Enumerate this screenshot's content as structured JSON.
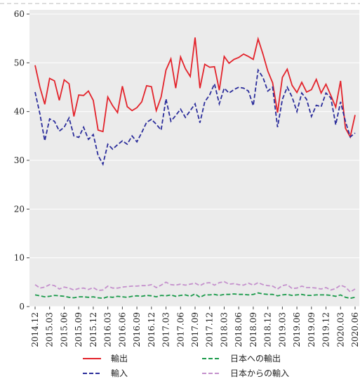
{
  "chart_data": {
    "type": "line",
    "categories": [
      "2014.12",
      null,
      null,
      "2015.03",
      null,
      null,
      "2015.06",
      null,
      null,
      "2015.09",
      null,
      null,
      "2015.12",
      null,
      null,
      "2016.03",
      null,
      null,
      "2016.06",
      null,
      null,
      "2016.09",
      null,
      null,
      "2016.12",
      null,
      null,
      "2017.03",
      null,
      null,
      "2017.06",
      null,
      null,
      "2017.09",
      null,
      null,
      "2017.12",
      null,
      null,
      "2018.03",
      null,
      null,
      "2018.06",
      null,
      null,
      "2018.09",
      null,
      null,
      "2018.12",
      null,
      null,
      "2019.03",
      null,
      null,
      "2019.06",
      null,
      null,
      "2019.09",
      null,
      null,
      "2019.12",
      null,
      null,
      "2020.03",
      null,
      null,
      "2020.06"
    ],
    "series": [
      {
        "name": "輸出",
        "color": "#e3232b",
        "dash": "solid",
        "values": [
          49.5,
          45,
          41.5,
          46.8,
          46.3,
          42.3,
          46.5,
          45.7,
          39,
          43.4,
          43.3,
          44.2,
          42.3,
          36.2,
          35.9,
          43,
          41.2,
          39.8,
          45.2,
          41,
          40.2,
          40.8,
          42,
          45.3,
          45.1,
          40.2,
          43,
          48.5,
          50.8,
          44.8,
          51.2,
          48.8,
          47.2,
          55.2,
          44.8,
          49.7,
          49.1,
          49.2,
          44.4,
          51.3,
          49.9,
          50.7,
          51.1,
          51.8,
          51.3,
          50.7,
          54.9,
          51.8,
          48.3,
          45.9,
          39.8,
          47,
          48.7,
          45.4,
          43.9,
          46,
          44,
          44.5,
          46.6,
          43.8,
          45.6,
          43.3,
          40.9,
          46.3,
          36.6,
          34.8,
          39.3
        ]
      },
      {
        "name": "輸入",
        "color": "#2b2d9b",
        "dash": "dashed",
        "values": [
          44,
          39.5,
          34,
          38.5,
          38,
          36,
          36.8,
          38.7,
          35,
          34.7,
          36.8,
          34.3,
          35.3,
          31,
          29.2,
          33.3,
          32.3,
          33.2,
          34,
          33.3,
          35,
          33.8,
          35.7,
          37.8,
          38.4,
          37.4,
          36.2,
          42.6,
          38,
          39.2,
          40.5,
          38.8,
          40.2,
          41.6,
          37.7,
          42,
          43.4,
          45.7,
          41.6,
          44.8,
          43.8,
          44.5,
          45,
          44.8,
          44.2,
          41.2,
          48.5,
          47,
          44.2,
          45,
          36.8,
          42.5,
          45,
          43,
          40,
          43.8,
          42.5,
          39,
          41.3,
          41,
          43.8,
          42.8,
          37.3,
          42,
          38,
          34.8,
          35.6
        ]
      },
      {
        "name": "日本への輸出",
        "color": "#1a9a4a",
        "dash": "dashed",
        "values": [
          2.4,
          2.2,
          2.0,
          2.1,
          2.3,
          2.2,
          2.1,
          1.9,
          1.8,
          2.0,
          2.0,
          1.9,
          2.0,
          1.8,
          1.7,
          2.0,
          1.9,
          2.1,
          2.0,
          1.9,
          2.1,
          2.2,
          2.1,
          2.3,
          2.2,
          2.0,
          2.3,
          2.2,
          2.4,
          2.1,
          2.3,
          2.4,
          2.1,
          2.6,
          1.9,
          2.4,
          2.4,
          2.5,
          2.3,
          2.5,
          2.5,
          2.6,
          2.5,
          2.5,
          2.4,
          2.5,
          2.8,
          2.6,
          2.5,
          2.5,
          2.2,
          2.4,
          2.5,
          2.3,
          2.4,
          2.5,
          2.3,
          2.3,
          2.4,
          2.4,
          2.4,
          2.3,
          2.1,
          2.4,
          1.9,
          1.7,
          1.9
        ]
      },
      {
        "name": "日本からの輸入",
        "color": "#c490cc",
        "dash": "dashed",
        "values": [
          4.5,
          3.8,
          4.0,
          4.5,
          4.3,
          3.6,
          4.0,
          3.8,
          3.4,
          3.7,
          3.8,
          3.5,
          3.9,
          3.3,
          3.4,
          4.2,
          3.8,
          3.8,
          4.0,
          4.1,
          4.2,
          4.2,
          4.3,
          4.3,
          4.5,
          3.9,
          4.4,
          5.0,
          4.5,
          4.4,
          4.6,
          4.4,
          4.6,
          4.8,
          4.3,
          4.8,
          4.9,
          4.4,
          4.9,
          5.1,
          4.6,
          4.7,
          4.5,
          4.4,
          4.8,
          4.4,
          4.9,
          4.5,
          4.3,
          4.2,
          3.6,
          4.3,
          4.5,
          3.7,
          3.8,
          4.2,
          3.9,
          3.9,
          3.8,
          3.6,
          3.9,
          3.4,
          3.7,
          4.4,
          4.0,
          3.0,
          3.6
        ]
      }
    ],
    "ylim": [
      0,
      60
    ],
    "yticks": [
      0,
      10,
      20,
      30,
      40,
      50,
      60
    ],
    "grid": true
  }
}
